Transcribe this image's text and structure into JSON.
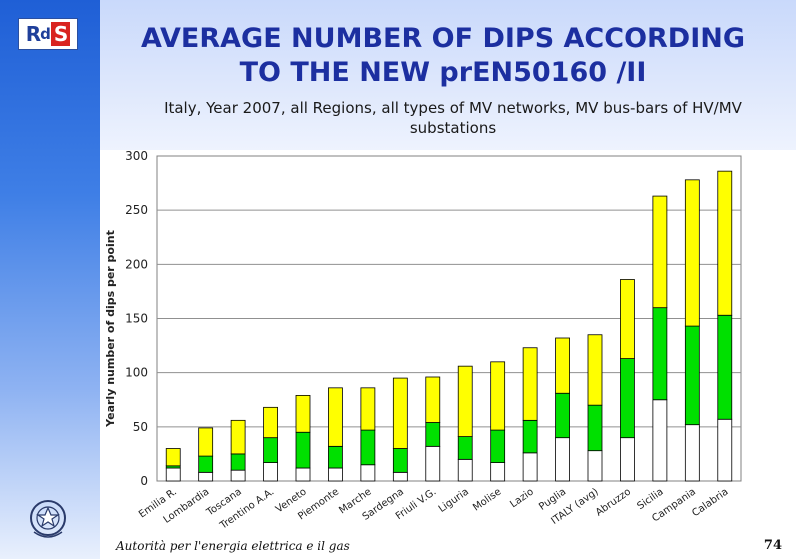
{
  "title_line1": "AVERAGE NUMBER OF DIPS ACCORDING",
  "title_line2": "TO THE NEW prEN50160 /II",
  "subtitle_line1": "Italy, Year 2007, all Regions, all types of MV networks, MV bus-bars of HV/MV",
  "subtitle_line2": "substations",
  "logo": {
    "r": "R",
    "d": "d",
    "s": "S"
  },
  "footer": "Autorità per l'energia elettrica e il gas",
  "page_number": "74",
  "colors": {
    "yellow": "#ffff00",
    "green": "#00e000",
    "white": "#ffffff",
    "title": "#1c2fa0"
  },
  "chart_data": {
    "type": "bar",
    "stacked": true,
    "ylabel": "Yearly number of dips per point",
    "ylim": [
      0,
      300
    ],
    "yticks": [
      "0",
      "50",
      "100",
      "150",
      "200",
      "250",
      "300"
    ],
    "grid": true,
    "categories": [
      "Emilia R.",
      "Lombardia",
      "Toscana",
      "Trentino A.A.",
      "Veneto",
      "Piemonte",
      "Marche",
      "Sardegna",
      "Friuli V.G.",
      "Liguria",
      "Molise",
      "Lazio",
      "Puglia",
      "ITALY (avg)",
      "Abruzzo",
      "Sicilia",
      "Campania",
      "Calabria"
    ],
    "series": [
      {
        "color": "#ffffff",
        "values": [
          12,
          8,
          10,
          17,
          12,
          12,
          15,
          8,
          32,
          20,
          17,
          26,
          40,
          28,
          40,
          75,
          52,
          57
        ]
      },
      {
        "color": "#00e000",
        "values": [
          2,
          15,
          15,
          23,
          33,
          20,
          32,
          22,
          22,
          21,
          30,
          30,
          41,
          42,
          73,
          85,
          91,
          96
        ]
      },
      {
        "color": "#ffff00",
        "values": [
          16,
          26,
          31,
          28,
          34,
          54,
          39,
          65,
          42,
          65,
          63,
          67,
          51,
          65,
          73,
          103,
          135,
          133
        ]
      }
    ]
  }
}
